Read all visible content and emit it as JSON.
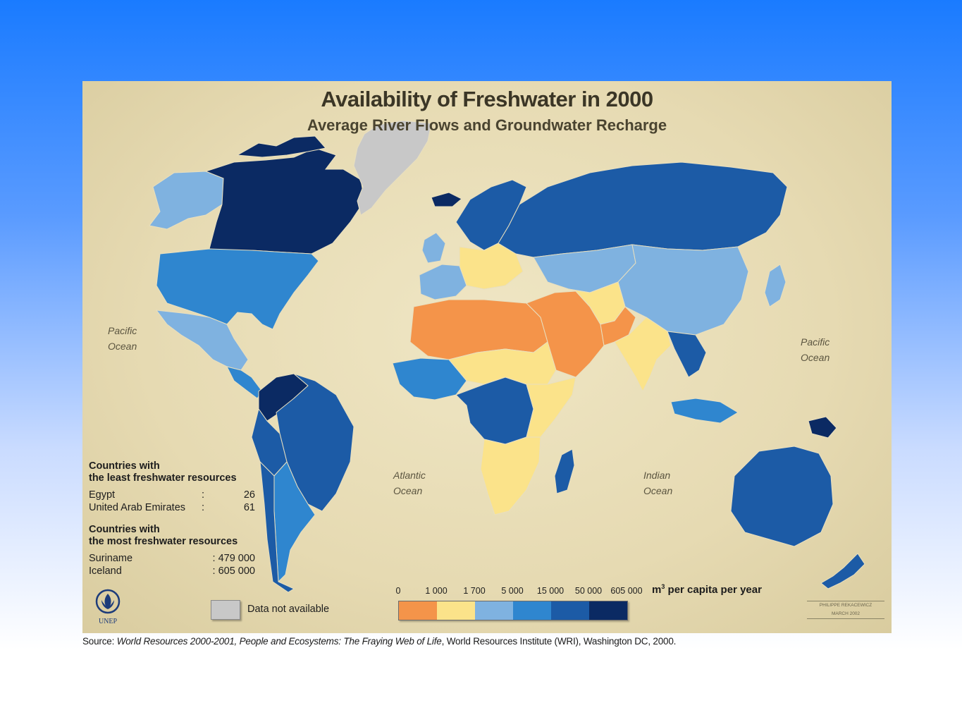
{
  "title": "Availability of Freshwater in 2000",
  "subtitle": "Average River Flows and Groundwater Recharge",
  "oceans": [
    {
      "line1": "Pacific",
      "line2": "Ocean"
    },
    {
      "line1": "Atlantic",
      "line2": "Ocean"
    },
    {
      "line1": "Indian",
      "line2": "Ocean"
    },
    {
      "line1": "Pacific",
      "line2": "Ocean"
    }
  ],
  "stats": {
    "least_heading_1": "Countries with",
    "least_heading_2": "the least freshwater resources",
    "least": [
      {
        "name": "Egypt",
        "sep": ":",
        "value": "26"
      },
      {
        "name": "United Arab Emirates",
        "sep": ":",
        "value": "61"
      }
    ],
    "most_heading_1": "Countries with",
    "most_heading_2": "the most freshwater resources",
    "most": [
      {
        "name": "Suriname",
        "sep": "",
        "value": ": 479 000"
      },
      {
        "name": "Iceland",
        "sep": "",
        "value": ": 605 000"
      }
    ]
  },
  "legend": {
    "thresholds": [
      "0",
      "1 000",
      "1 700",
      "5 000",
      "15 000",
      "50 000",
      "605 000"
    ],
    "unit_main": "m",
    "unit_sup": "3",
    "unit_rest": " per capita per year",
    "colors": [
      "#f4944a",
      "#fbe38a",
      "#7fb2e0",
      "#2f86cf",
      "#1c5ba6",
      "#0b2a63"
    ],
    "na_label": "Data not available",
    "na_color": "#c8c8c8"
  },
  "logo_text": "UNEP",
  "credit": {
    "line1": "PHILIPPE REKACEWICZ",
    "line2": "MARCH 2002"
  },
  "source": {
    "prefix": "Source: ",
    "italic": "World Resources 2000-2001, People and Ecosystems: The Fraying Web of Life",
    "suffix": ", World Resources Institute (WRI), Washington DC, 2000."
  },
  "regions": [
    {
      "name": "canada",
      "cls": 5
    },
    {
      "name": "alaska",
      "cls": 2
    },
    {
      "name": "greenland",
      "cls": "na"
    },
    {
      "name": "usa",
      "cls": 3
    },
    {
      "name": "mexico",
      "cls": 2
    },
    {
      "name": "central-america",
      "cls": 3
    },
    {
      "name": "south-america-north",
      "cls": 5
    },
    {
      "name": "brazil",
      "cls": 4
    },
    {
      "name": "andes",
      "cls": 4
    },
    {
      "name": "southern-cone",
      "cls": 3
    },
    {
      "name": "chile",
      "cls": 4
    },
    {
      "name": "scandinavia",
      "cls": 4
    },
    {
      "name": "iceland",
      "cls": 5
    },
    {
      "name": "uk-ireland",
      "cls": 2
    },
    {
      "name": "western-europe",
      "cls": 2
    },
    {
      "name": "central-europe",
      "cls": 1
    },
    {
      "name": "russia",
      "cls": 4
    },
    {
      "name": "kazakhstan-central-asia",
      "cls": 2
    },
    {
      "name": "mongolia-china",
      "cls": 2
    },
    {
      "name": "north-africa",
      "cls": 0
    },
    {
      "name": "sahel",
      "cls": 1
    },
    {
      "name": "west-africa",
      "cls": 3
    },
    {
      "name": "central-africa",
      "cls": 4
    },
    {
      "name": "east-africa",
      "cls": 1
    },
    {
      "name": "southern-africa",
      "cls": 1
    },
    {
      "name": "madagascar",
      "cls": 4
    },
    {
      "name": "middle-east",
      "cls": 0
    },
    {
      "name": "iran-afghanistan",
      "cls": 1
    },
    {
      "name": "pakistan",
      "cls": 0
    },
    {
      "name": "india",
      "cls": 1
    },
    {
      "name": "southeast-asia",
      "cls": 4
    },
    {
      "name": "indonesia",
      "cls": 3
    },
    {
      "name": "papua",
      "cls": 5
    },
    {
      "name": "japan",
      "cls": 2
    },
    {
      "name": "australia",
      "cls": 4
    },
    {
      "name": "new-zealand",
      "cls": 4
    }
  ]
}
